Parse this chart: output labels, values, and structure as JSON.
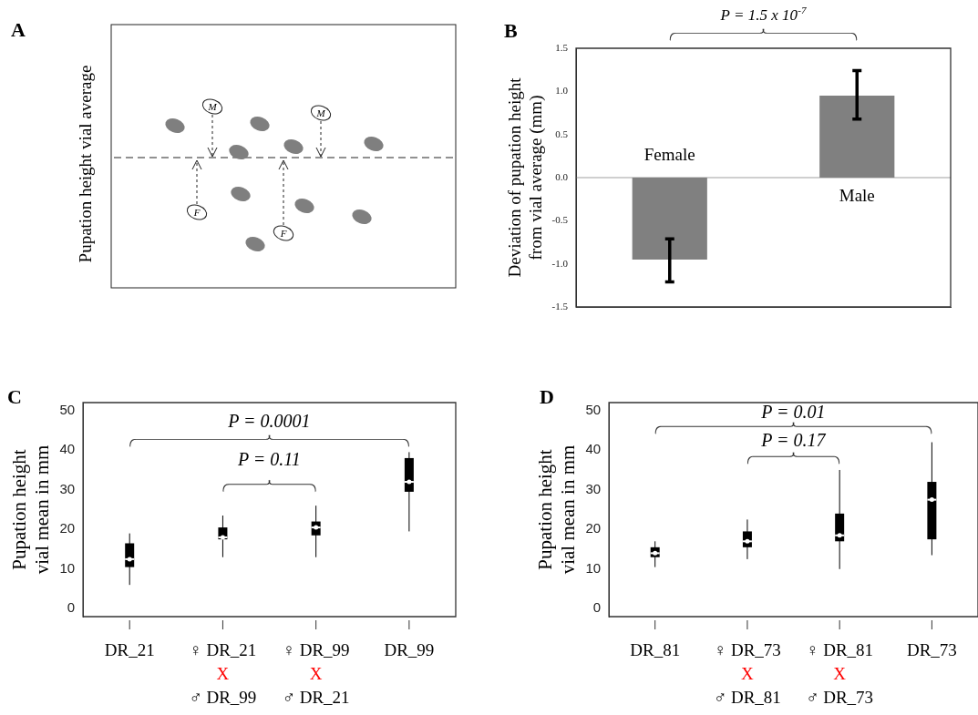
{
  "chart_data": [
    {
      "type": "other",
      "title": "A",
      "ylabel": "Pupation height vial average",
      "annotations": [
        "M",
        "M",
        "F",
        "F"
      ]
    },
    {
      "type": "bar",
      "title": "B",
      "ylabel": "Deviation of pupation height from vial average (mm)",
      "categories": [
        "Female",
        "Male"
      ],
      "values": [
        -0.95,
        0.95
      ],
      "color": "#808080",
      "errors": [
        [
          -1.21,
          -0.71
        ],
        [
          0.68,
          1.24
        ]
      ],
      "ylim": [
        -1.5,
        1.5
      ],
      "yticks": [
        {
          "value": -1.5,
          "label": "-1.5"
        },
        {
          "value": -1,
          "label": "-1.0"
        },
        {
          "value": -0.5,
          "label": "-0.5"
        },
        {
          "value": 0,
          "label": "0.0"
        },
        {
          "value": 0.5,
          "label": "0.5"
        },
        {
          "value": 1,
          "label": "1.0"
        },
        {
          "value": 1.5,
          "label": "1.5"
        }
      ],
      "ref_lines": [
        {
          "axis": "y",
          "value": 0,
          "color": "#a0a0a0"
        }
      ],
      "annotations": [
        "P = 1.5 x 10$^{-7}$"
      ]
    },
    {
      "type": "box",
      "title": "C",
      "ylabel": "Pupation height vial mean in mm",
      "categories": [
        "DR_21",
        "♀ DR_21\nX\n♂ DR_99",
        "♀ DR_99\nX\n♂ DR_21",
        "DR_99"
      ],
      "boxes": [
        {
          "low": 6,
          "q1": 10.5,
          "median": 12.5,
          "q3": 16.5,
          "high": 19
        },
        {
          "low": 13,
          "q1": 17.5,
          "median": 18,
          "q3": 20.5,
          "high": 23.5
        },
        {
          "low": 13,
          "q1": 18.5,
          "median": 20.5,
          "q3": 22,
          "high": 26
        },
        {
          "low": 19.5,
          "q1": 29.5,
          "median": 32,
          "q3": 38,
          "high": 39.5
        }
      ],
      "ylim": [
        -2,
        52
      ],
      "yticks": [
        0,
        10,
        20,
        30,
        40,
        50
      ],
      "annotations": [
        "P = 0.0001",
        "P = 0.11"
      ]
    },
    {
      "type": "box",
      "title": "D",
      "ylabel": "Pupation height vial mean in mm",
      "categories": [
        "DR_81",
        "♀ DR_73\nX\n♂ DR_81",
        "♀ DR_81\nX\n♂ DR_73",
        "DR_73"
      ],
      "boxes": [
        {
          "low": 10.5,
          "q1": 13,
          "median": 14,
          "q3": 15.5,
          "high": 17
        },
        {
          "low": 12.5,
          "q1": 15.5,
          "median": 17,
          "q3": 19.5,
          "high": 22.5
        },
        {
          "low": 10,
          "q1": 17,
          "median": 18.5,
          "q3": 24,
          "high": 35
        },
        {
          "low": 13.5,
          "q1": 17.5,
          "median": 27.5,
          "q3": 32,
          "high": 42
        }
      ],
      "ylim": [
        -2,
        52
      ],
      "yticks": [
        0,
        10,
        20,
        30,
        40,
        50
      ],
      "annotations": [
        "P = 0.01",
        "P = 0.17"
      ]
    }
  ]
}
